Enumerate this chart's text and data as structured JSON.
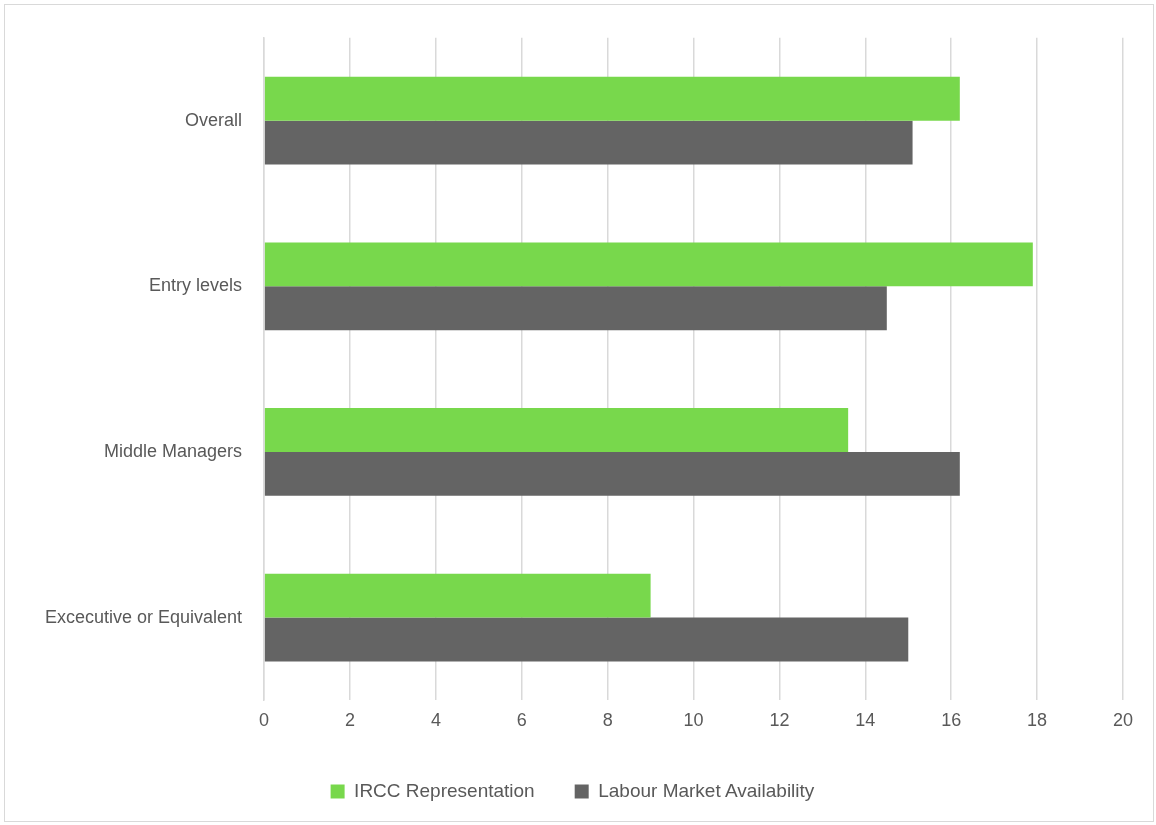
{
  "chart_data": {
    "type": "bar",
    "orientation": "horizontal",
    "categories": [
      "Overall",
      "Entry levels",
      "Middle Managers",
      "Excecutive or Equivalent"
    ],
    "series": [
      {
        "name": "IRCC Representation",
        "color": "#78d84c",
        "values": [
          16.2,
          17.9,
          13.6,
          9.0
        ]
      },
      {
        "name": "Labour Market Availability",
        "color": "#646464",
        "values": [
          15.1,
          14.5,
          16.2,
          15.0
        ]
      }
    ],
    "xlim": [
      0,
      20
    ],
    "xticks": [
      0,
      2,
      4,
      6,
      8,
      10,
      12,
      14,
      16,
      18,
      20
    ],
    "grid": "x",
    "legend": "bottom"
  }
}
